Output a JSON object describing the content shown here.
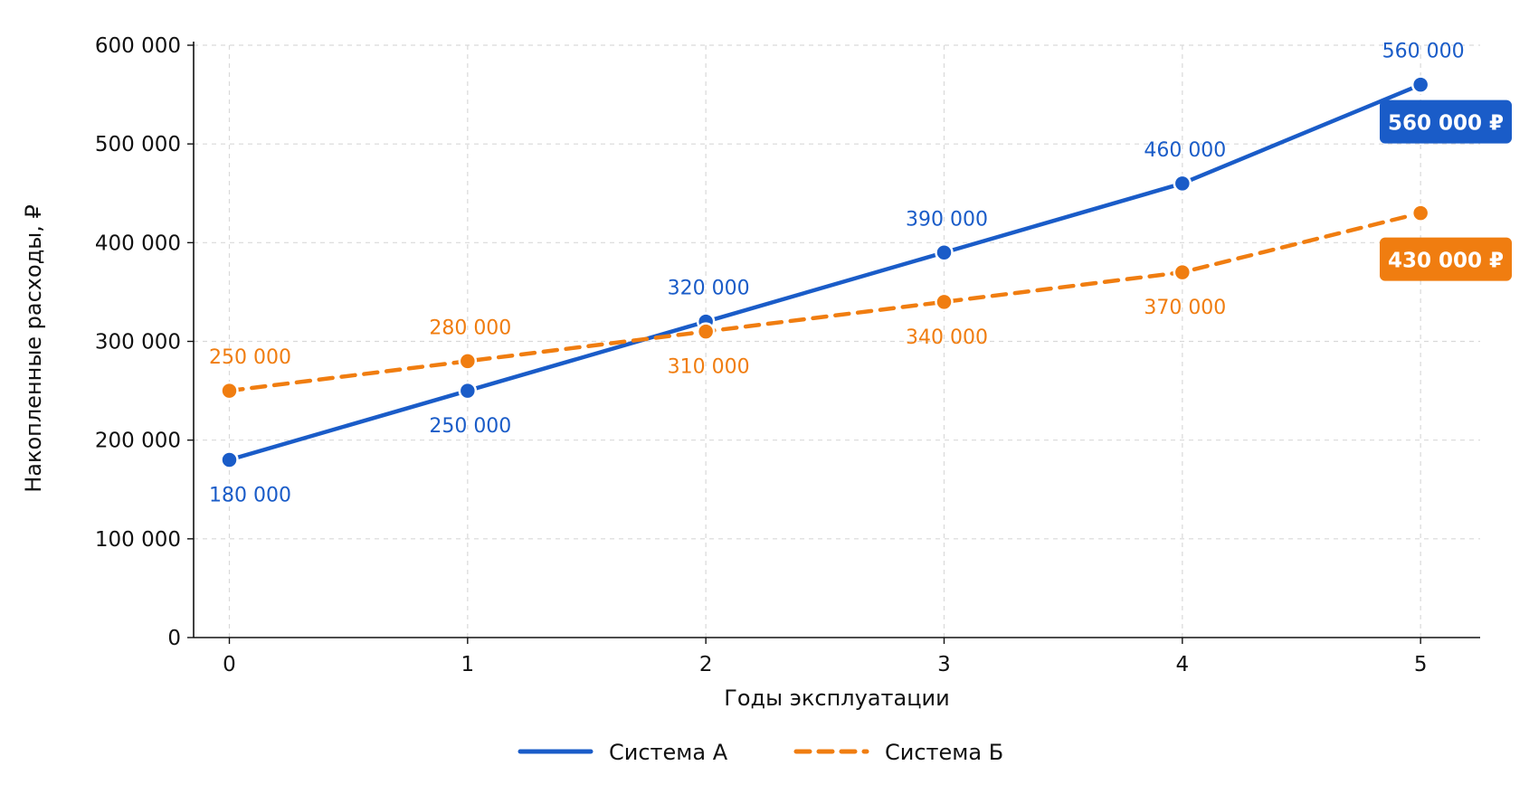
{
  "chart_data": {
    "type": "line",
    "title": "",
    "xlabel": "Годы эксплуатации",
    "ylabel": "Накопленные расходы, ₽",
    "x": [
      0,
      1,
      2,
      3,
      4,
      5
    ],
    "xlim": [
      -0.15,
      5.25
    ],
    "ylim": [
      0,
      600000
    ],
    "yticks": [
      0,
      100000,
      200000,
      300000,
      400000,
      500000,
      600000
    ],
    "ytick_labels": [
      "0",
      "100 000",
      "200 000",
      "300 000",
      "400 000",
      "500 000",
      "600 000"
    ],
    "xtick_labels": [
      "0",
      "1",
      "2",
      "3",
      "4",
      "5"
    ],
    "grid": true,
    "legend_position": "bottom-center",
    "series": [
      {
        "name": "Система А",
        "color": "#1a5cc8",
        "style": "solid",
        "values": [
          180000,
          250000,
          320000,
          390000,
          460000,
          560000
        ],
        "labels": [
          "180 000",
          "250 000",
          "320 000",
          "390 000",
          "460 000",
          "560 000"
        ],
        "label_side": [
          "below",
          "below",
          "above",
          "above",
          "above",
          "above"
        ],
        "end_badge": "560 000 ₽"
      },
      {
        "name": "Система Б",
        "color": "#f07d10",
        "style": "dashed",
        "values": [
          250000,
          280000,
          310000,
          340000,
          370000,
          430000
        ],
        "labels": [
          "250 000",
          "280 000",
          "310 000",
          "340 000",
          "370 000",
          "430 000"
        ],
        "label_side": [
          "above",
          "above",
          "below",
          "below",
          "below",
          "none"
        ],
        "end_badge": "430 000 ₽"
      }
    ]
  }
}
